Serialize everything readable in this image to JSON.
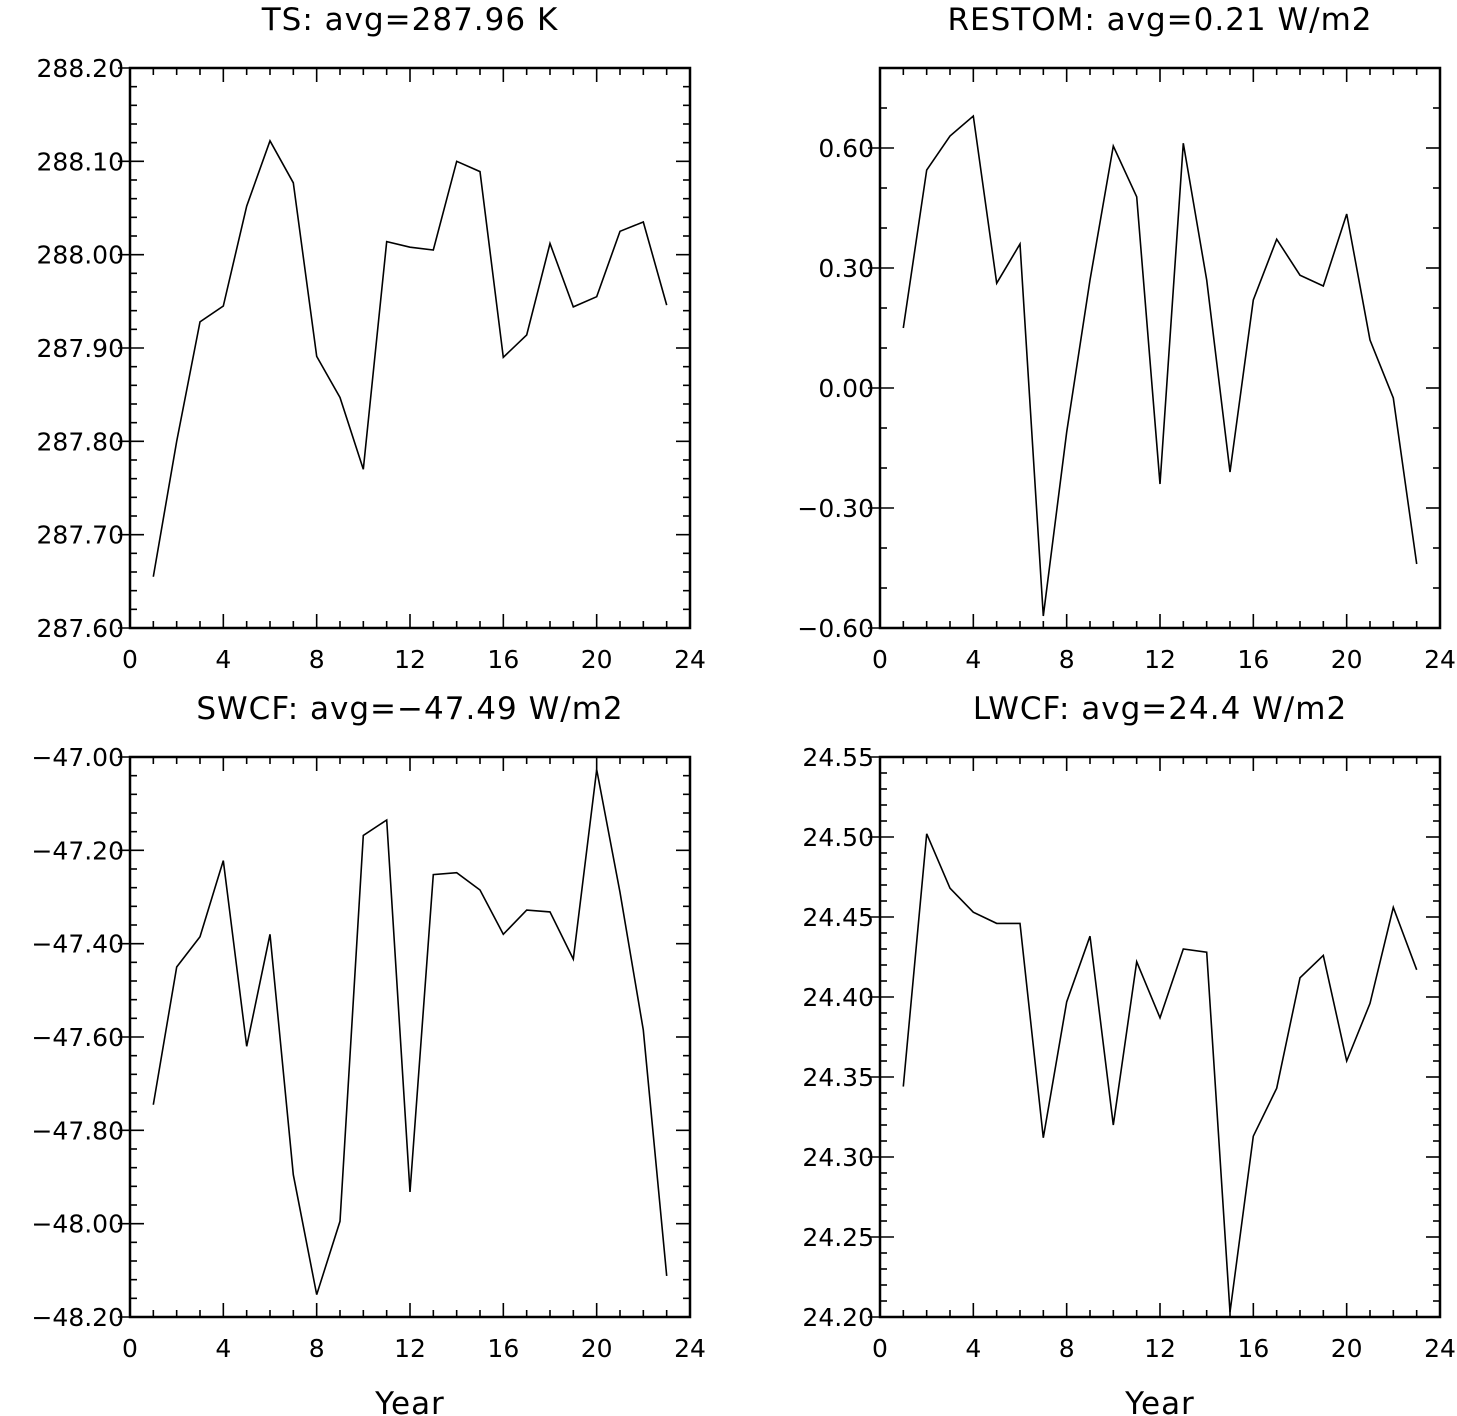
{
  "chart_data": [
    {
      "type": "line",
      "title": "TS: avg=287.96 K",
      "xlabel": "",
      "ylabel": "",
      "xlim": [
        0,
        24
      ],
      "ylim": [
        287.6,
        288.2
      ],
      "xticks": [
        0,
        4,
        8,
        12,
        16,
        20,
        24
      ],
      "xtick_labels": [
        "0",
        "4",
        "8",
        "12",
        "16",
        "20",
        "24"
      ],
      "yticks": [
        287.6,
        287.7,
        287.8,
        287.9,
        288.0,
        288.1,
        288.2
      ],
      "ytick_labels": [
        "287.60",
        "287.70",
        "287.80",
        "287.90",
        "288.00",
        "288.10",
        "288.20"
      ],
      "minor_x_step": 1,
      "minor_y_step": 0.02,
      "grid": false,
      "x": [
        1,
        2,
        3,
        4,
        5,
        6,
        7,
        8,
        9,
        10,
        11,
        12,
        13,
        14,
        15,
        16,
        17,
        18,
        19,
        20,
        21,
        22,
        23
      ],
      "values": [
        287.655,
        287.8,
        287.928,
        287.945,
        288.052,
        288.122,
        288.077,
        287.891,
        287.847,
        287.77,
        288.014,
        288.008,
        288.005,
        288.1,
        288.089,
        287.89,
        287.914,
        288.012,
        287.944,
        287.955,
        288.025,
        288.035,
        287.946
      ]
    },
    {
      "type": "line",
      "title": "RESTOM: avg=0.21 W/m2",
      "xlabel": "",
      "ylabel": "",
      "xlim": [
        0,
        24
      ],
      "ylim": [
        -0.6,
        0.8
      ],
      "xticks": [
        0,
        4,
        8,
        12,
        16,
        20,
        24
      ],
      "xtick_labels": [
        "0",
        "4",
        "8",
        "12",
        "16",
        "20",
        "24"
      ],
      "yticks": [
        -0.6,
        -0.3,
        0.0,
        0.3,
        0.6
      ],
      "ytick_labels": [
        "−0.60",
        "−0.30",
        "0.00",
        "0.30",
        "0.60"
      ],
      "minor_x_step": 1,
      "minor_y_step": 0.1,
      "grid": false,
      "x": [
        1,
        2,
        3,
        4,
        5,
        6,
        7,
        8,
        9,
        10,
        11,
        12,
        13,
        14,
        15,
        16,
        17,
        18,
        19,
        20,
        21,
        22,
        23
      ],
      "values": [
        0.15,
        0.545,
        0.63,
        0.68,
        0.262,
        0.36,
        -0.57,
        -0.11,
        0.27,
        0.605,
        0.478,
        -0.24,
        0.612,
        0.27,
        -0.21,
        0.22,
        0.372,
        0.282,
        0.255,
        0.435,
        0.12,
        -0.025,
        -0.44
      ]
    },
    {
      "type": "line",
      "title": "SWCF: avg=−47.49 W/m2",
      "xlabel": "Year",
      "ylabel": "",
      "xlim": [
        0,
        24
      ],
      "ylim": [
        -48.2,
        -47.0
      ],
      "xticks": [
        0,
        4,
        8,
        12,
        16,
        20,
        24
      ],
      "xtick_labels": [
        "0",
        "4",
        "8",
        "12",
        "16",
        "20",
        "24"
      ],
      "yticks": [
        -48.2,
        -48.0,
        -47.8,
        -47.6,
        -47.4,
        -47.2,
        -47.0
      ],
      "ytick_labels": [
        "−48.20",
        "−48.00",
        "−47.80",
        "−47.60",
        "−47.40",
        "−47.20",
        "−47.00"
      ],
      "minor_x_step": 1,
      "minor_y_step": 0.04,
      "grid": false,
      "x": [
        1,
        2,
        3,
        4,
        5,
        6,
        7,
        8,
        9,
        10,
        11,
        12,
        13,
        14,
        15,
        16,
        17,
        18,
        19,
        20,
        21,
        22,
        23
      ],
      "values": [
        -47.745,
        -47.45,
        -47.385,
        -47.222,
        -47.62,
        -47.38,
        -47.895,
        -48.152,
        -47.995,
        -47.168,
        -47.135,
        -47.932,
        -47.252,
        -47.248,
        -47.285,
        -47.38,
        -47.328,
        -47.332,
        -47.433,
        -47.027,
        -47.29,
        -47.585,
        -48.112
      ]
    },
    {
      "type": "line",
      "title": "LWCF: avg=24.4 W/m2",
      "xlabel": "Year",
      "ylabel": "",
      "xlim": [
        0,
        24
      ],
      "ylim": [
        24.2,
        24.55
      ],
      "xticks": [
        0,
        4,
        8,
        12,
        16,
        20,
        24
      ],
      "xtick_labels": [
        "0",
        "4",
        "8",
        "12",
        "16",
        "20",
        "24"
      ],
      "yticks": [
        24.2,
        24.25,
        24.3,
        24.35,
        24.4,
        24.45,
        24.5,
        24.55
      ],
      "ytick_labels": [
        "24.20",
        "24.25",
        "24.30",
        "24.35",
        "24.40",
        "24.45",
        "24.50",
        "24.55"
      ],
      "minor_x_step": 1,
      "minor_y_step": 0.01,
      "grid": false,
      "x": [
        1,
        2,
        3,
        4,
        5,
        6,
        7,
        8,
        9,
        10,
        11,
        12,
        13,
        14,
        15,
        16,
        17,
        18,
        19,
        20,
        21,
        22,
        23
      ],
      "values": [
        24.344,
        24.502,
        24.468,
        24.453,
        24.446,
        24.446,
        24.312,
        24.397,
        24.438,
        24.32,
        24.422,
        24.387,
        24.43,
        24.428,
        24.203,
        24.313,
        24.343,
        24.412,
        24.426,
        24.36,
        24.396,
        24.456,
        24.417
      ]
    }
  ]
}
